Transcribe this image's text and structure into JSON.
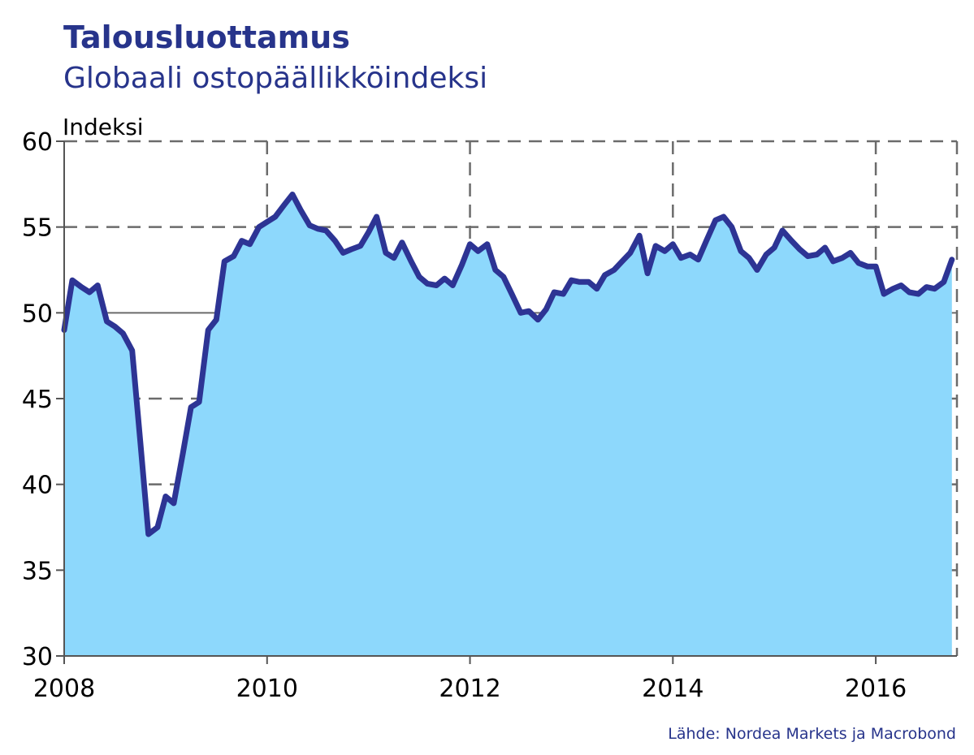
{
  "chart_data": {
    "type": "area",
    "title": "Talousluottamus",
    "subtitle": "Globaali ostopäällikköindeksi",
    "ylabel": "Indeksi",
    "xlabel": "",
    "source": "Lähde: Nordea Markets ja Macrobond",
    "ylim": [
      30,
      60
    ],
    "xlim": [
      2008.0,
      2016.8
    ],
    "yticks": [
      30,
      35,
      40,
      45,
      50,
      55,
      60
    ],
    "xticks": [
      2008,
      2010,
      2012,
      2014,
      2016
    ],
    "grid": true,
    "reference_line": 50,
    "colors": {
      "line": "#2d3494",
      "fill": "#8dd8fc",
      "text_accent": "#27348b"
    },
    "series": [
      {
        "x": [
          2008.0,
          2008.08,
          2008.17,
          2008.25,
          2008.33,
          2008.42,
          2008.5,
          2008.58,
          2008.67,
          2008.75,
          2008.83,
          2008.92,
          2009.0,
          2009.08,
          2009.17,
          2009.25,
          2009.33,
          2009.42,
          2009.5,
          2009.58,
          2009.67,
          2009.75,
          2009.83,
          2009.92,
          2010.0,
          2010.08,
          2010.17,
          2010.25,
          2010.33,
          2010.42,
          2010.5,
          2010.58,
          2010.67,
          2010.75,
          2010.83,
          2010.92,
          2011.0,
          2011.08,
          2011.17,
          2011.25,
          2011.33,
          2011.42,
          2011.5,
          2011.58,
          2011.67,
          2011.75,
          2011.83,
          2011.92,
          2012.0,
          2012.08,
          2012.17,
          2012.25,
          2012.33,
          2012.42,
          2012.5,
          2012.58,
          2012.67,
          2012.75,
          2012.83,
          2012.92,
          2013.0,
          2013.08,
          2013.17,
          2013.25,
          2013.33,
          2013.42,
          2013.5,
          2013.58,
          2013.67,
          2013.75,
          2013.83,
          2013.92,
          2014.0,
          2014.08,
          2014.17,
          2014.25,
          2014.33,
          2014.42,
          2014.5,
          2014.58,
          2014.67,
          2014.75,
          2014.83,
          2014.92,
          2015.0,
          2015.08,
          2015.17,
          2015.25,
          2015.33,
          2015.42,
          2015.5,
          2015.58,
          2015.67,
          2015.75,
          2015.83,
          2015.92,
          2016.0,
          2016.08,
          2016.17,
          2016.25,
          2016.33,
          2016.42,
          2016.5,
          2016.58,
          2016.67,
          2016.75
        ],
        "values": [
          49.0,
          51.9,
          51.5,
          51.2,
          51.6,
          49.5,
          49.2,
          48.8,
          47.8,
          42.5,
          37.1,
          37.5,
          39.3,
          38.9,
          41.8,
          44.5,
          44.8,
          49.0,
          49.6,
          53.0,
          53.3,
          54.2,
          54.0,
          55.0,
          55.3,
          55.6,
          56.3,
          56.9,
          56.0,
          55.1,
          54.9,
          54.8,
          54.2,
          53.5,
          53.7,
          53.9,
          54.7,
          55.6,
          53.5,
          53.2,
          54.1,
          53.0,
          52.1,
          51.7,
          51.6,
          52.0,
          51.6,
          52.8,
          54.0,
          53.6,
          54.0,
          52.5,
          52.1,
          51.0,
          50.0,
          50.1,
          49.6,
          50.2,
          51.2,
          51.1,
          51.9,
          51.8,
          51.8,
          51.4,
          52.2,
          52.5,
          53.0,
          53.5,
          54.5,
          52.3,
          53.9,
          53.6,
          54.0,
          53.2,
          53.4,
          53.1,
          54.2,
          55.4,
          55.6,
          55.0,
          53.6,
          53.2,
          52.5,
          53.4,
          53.8,
          54.8,
          54.2,
          53.7,
          53.3,
          53.4,
          53.8,
          53.0,
          53.2,
          53.5,
          52.9,
          52.7,
          52.7,
          51.1,
          51.4,
          51.6,
          51.2,
          51.1,
          51.5,
          51.4,
          51.8,
          53.1
        ]
      }
    ]
  }
}
